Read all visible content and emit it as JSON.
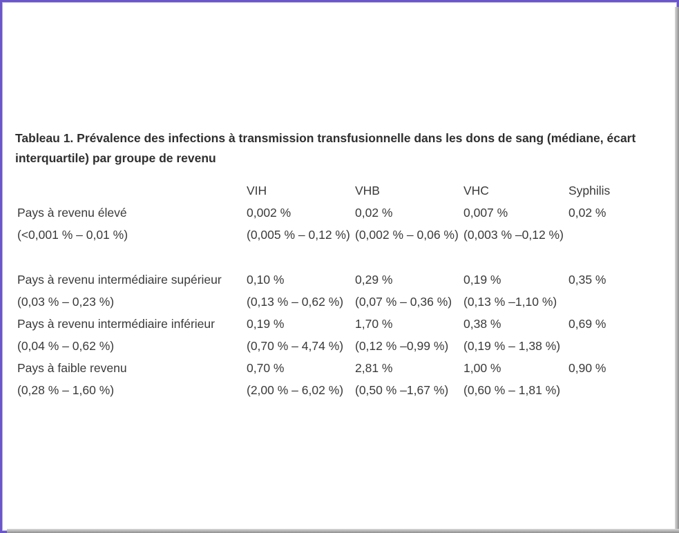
{
  "caption": "Tableau 1. Prévalence des infections à transmission transfusionnelle dans les dons de sang (médiane, écart interquartile) par groupe de revenu",
  "table": {
    "headers": [
      "",
      "VIH",
      "VHB",
      "VHC",
      "Syphilis"
    ],
    "rows": [
      [
        "Pays à revenu élevé",
        "0,002 %",
        "0,02 %",
        "0,007 %",
        "0,02 %"
      ],
      [
        "(<0,001 % – 0,01 %)",
        "(0,005 % – 0,12 %)",
        "(0,002 % – 0,06 %)",
        "(0,003 % –0,12 %)",
        ""
      ],
      [
        "",
        "",
        "",
        "",
        ""
      ],
      [
        "Pays à revenu intermédiaire supérieur",
        "0,10 %",
        "0,29 %",
        "0,19 %",
        "0,35 %"
      ],
      [
        "(0,03 % – 0,23 %)",
        "(0,13 % – 0,62 %)",
        "(0,07 % – 0,36 %)",
        "(0,13 % –1,10 %)",
        ""
      ],
      [
        "Pays à revenu intermédiaire inférieur",
        "0,19 %",
        "1,70 %",
        "0,38 %",
        "0,69 %"
      ],
      [
        "(0,04 % – 0,62 %)",
        "(0,70 % – 4,74 %)",
        "(0,12 % –0,99 %)",
        "(0,19 % – 1,38 %)",
        ""
      ],
      [
        "Pays à faible revenu",
        "0,70 %",
        "2,81 %",
        "1,00 %",
        "0,90 %"
      ],
      [
        "(0,28 % – 1,60 %)",
        "(2,00 % – 6,02 %)",
        "(0,50 % –1,67 %)",
        "(0,60 % – 1,81 %)",
        ""
      ]
    ]
  }
}
